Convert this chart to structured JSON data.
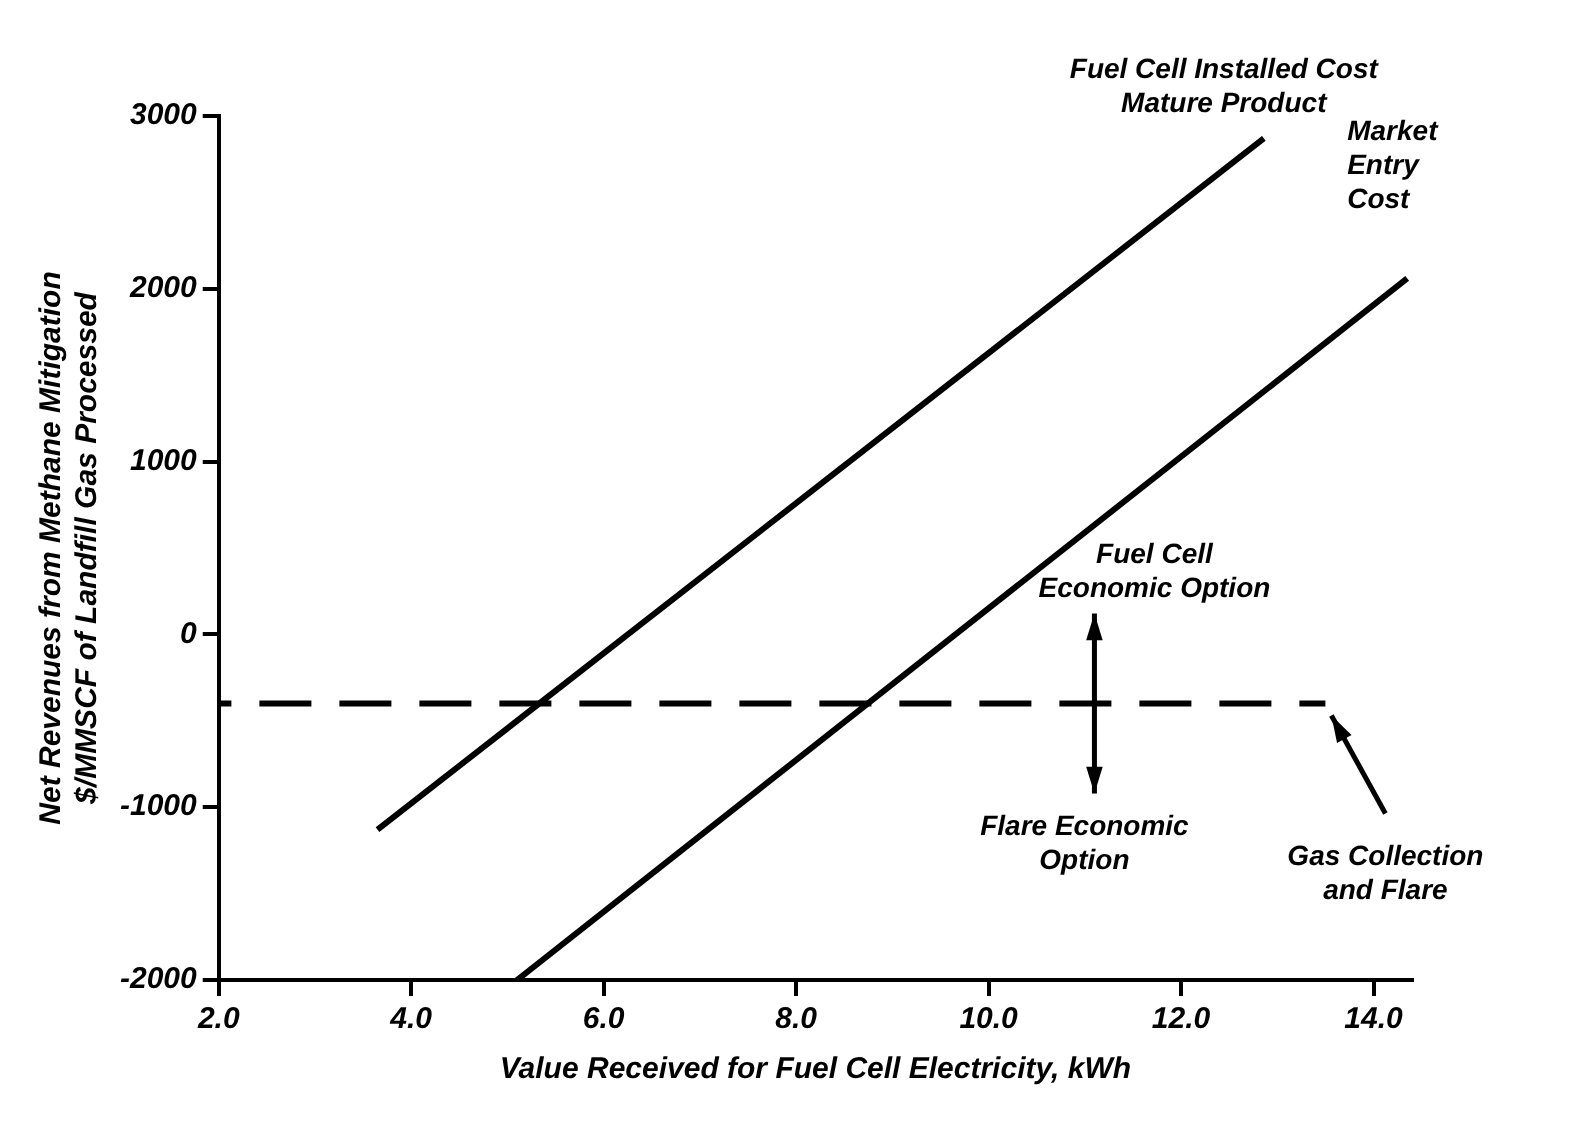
{
  "chart_data": {
    "type": "line",
    "xlabel": "Value Received for Fuel Cell Electricity, kWh",
    "ylabel": "Net Revenues from Methane Mitigation\n$/MMSCF of Landfill Gas Processed",
    "xlim": [
      2,
      14.4
    ],
    "xticks": [
      {
        "value": 2,
        "label": "2.0"
      },
      {
        "value": 4,
        "label": "4.0"
      },
      {
        "value": 6,
        "label": "6.0"
      },
      {
        "value": 8,
        "label": "8.0"
      },
      {
        "value": 10,
        "label": "10.0"
      },
      {
        "value": 12,
        "label": "12.0"
      },
      {
        "value": 14,
        "label": "14.0"
      }
    ],
    "ylim": [
      -2000,
      3000
    ],
    "yticks": [
      -2000,
      -1000,
      0,
      1000,
      2000,
      3000
    ],
    "grid": false,
    "legend": false,
    "marker": "none",
    "series": [
      {
        "name": "Fuel Cell Installed Cost Mature Product",
        "color": "#000000",
        "x": [
          3.65,
          12.86
        ],
        "values": [
          -1130,
          2870
        ]
      },
      {
        "name": "Market Entry Cost",
        "color": "#000000",
        "x": [
          5.1,
          14.35
        ],
        "values": [
          -2000,
          2060
        ]
      },
      {
        "name": "Gas Collection and Flare",
        "color": "#000000",
        "x": [
          2,
          13.5
        ],
        "values": [
          -400,
          -400
        ],
        "line_style": "dashed"
      }
    ],
    "annotations": [
      {
        "text": "Fuel Cell Economic Option",
        "x": 11.1,
        "y": -400
      },
      "Flare Economic Option"
    ]
  }
}
